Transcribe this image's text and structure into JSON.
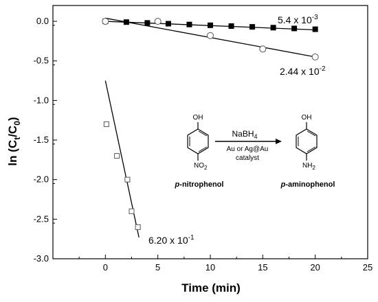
{
  "chart_data": {
    "type": "scatter",
    "xlabel": "Time (min)",
    "ylabel_parts": {
      "prefix": "ln (C",
      "sub1": "t",
      "mid": "/C",
      "sub2": "0",
      "suffix": ")"
    },
    "xlim": [
      -5,
      25
    ],
    "ylim": [
      -3.0,
      0.2
    ],
    "x_ticks": [
      0,
      5,
      10,
      15,
      20,
      25
    ],
    "y_ticks": [
      0.0,
      -0.5,
      -1.0,
      -1.5,
      -2.0,
      -2.5,
      -3.0
    ],
    "x_tick_labels": [
      "0",
      "5",
      "10",
      "15",
      "20",
      "25"
    ],
    "y_tick_labels": [
      "0.0",
      "-0.5",
      "-1.0",
      "-1.5",
      "-2.0",
      "-2.5",
      "-3.0"
    ],
    "grid": false,
    "series": [
      {
        "marker": "filled-square",
        "x": [
          0,
          2,
          4,
          6,
          8,
          10,
          12,
          14,
          16,
          18,
          20
        ],
        "y": [
          0.0,
          -0.01,
          -0.02,
          -0.03,
          -0.04,
          -0.05,
          -0.06,
          -0.07,
          -0.08,
          -0.09,
          -0.1
        ],
        "fit": {
          "x": [
            0,
            20
          ],
          "y": [
            0.0,
            -0.108
          ]
        },
        "rate_label": {
          "mantissa": "5.4 x 10",
          "exponent": "-3"
        }
      },
      {
        "marker": "open-circle",
        "x": [
          0,
          5,
          10,
          15,
          20
        ],
        "y": [
          0.0,
          0.0,
          -0.18,
          -0.35,
          -0.45
        ],
        "fit": {
          "x": [
            0,
            20
          ],
          "y": [
            0.04,
            -0.45
          ]
        },
        "rate_label": {
          "mantissa": "2.44 x 10",
          "exponent": "-2"
        }
      },
      {
        "marker": "open-square",
        "x": [
          0.1,
          1.1,
          2.1,
          2.5,
          3.1
        ],
        "y": [
          -1.3,
          -1.7,
          -2.0,
          -2.4,
          -2.6
        ],
        "fit": {
          "x": [
            0,
            3.2
          ],
          "y": [
            -0.75,
            -2.73
          ]
        },
        "rate_label": {
          "mantissa": "6.20 x 10",
          "exponent": "-1"
        }
      }
    ],
    "scheme": {
      "oh": "OH",
      "no2_main": "NO",
      "no2_sub": "2",
      "nh2_main": "NH",
      "nh2_sub": "2",
      "reagent_main": "NaBH",
      "reagent_sub": "4",
      "condition_line1": "Au or Ag@Au",
      "condition_line2": "catalyst",
      "reactant_italic": "p",
      "reactant_rest": "-nitrophenol",
      "product_italic": "p",
      "product_rest": "-aminophenol"
    }
  }
}
